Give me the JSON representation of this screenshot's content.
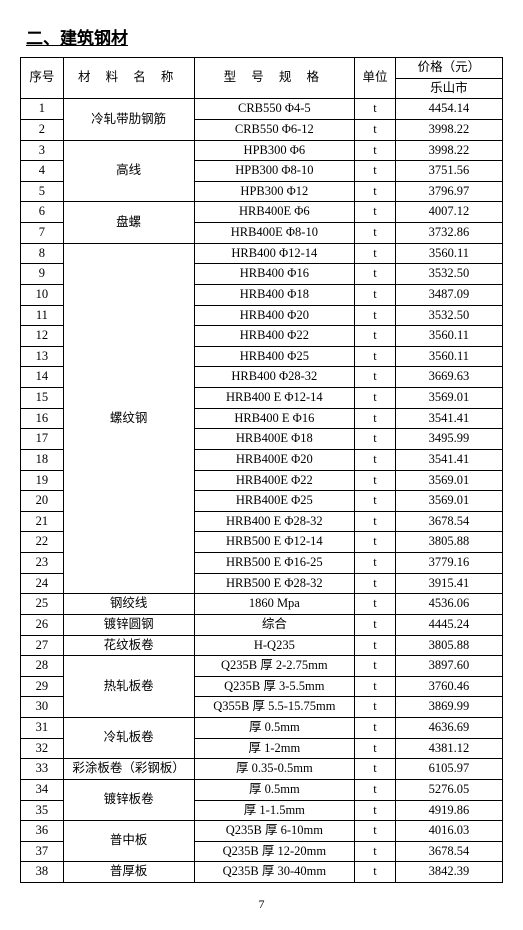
{
  "title": "二、建筑钢材",
  "page_number": "7",
  "columns": {
    "seq": "序号",
    "name": "材 料 名 称",
    "spec": "型 号 规 格",
    "unit": "单位",
    "price_group": "价格（元）",
    "price_city": "乐山市"
  },
  "groups": [
    {
      "name": "冷轧带肋钢筋",
      "rows": [
        {
          "seq": "1",
          "spec": "CRB550    Φ4-5",
          "unit": "t",
          "price": "4454.14"
        },
        {
          "seq": "2",
          "spec": "CRB550    Φ6-12",
          "unit": "t",
          "price": "3998.22"
        }
      ]
    },
    {
      "name": "高线",
      "rows": [
        {
          "seq": "3",
          "spec": "HPB300    Φ6",
          "unit": "t",
          "price": "3998.22"
        },
        {
          "seq": "4",
          "spec": "HPB300    Φ8-10",
          "unit": "t",
          "price": "3751.56"
        },
        {
          "seq": "5",
          "spec": "HPB300    Φ12",
          "unit": "t",
          "price": "3796.97"
        }
      ]
    },
    {
      "name": "盘螺",
      "rows": [
        {
          "seq": "6",
          "spec": "HRB400E    Φ6",
          "unit": "t",
          "price": "4007.12"
        },
        {
          "seq": "7",
          "spec": "HRB400E    Φ8-10",
          "unit": "t",
          "price": "3732.86"
        }
      ]
    },
    {
      "name": "螺纹钢",
      "rows": [
        {
          "seq": "8",
          "spec": "HRB400    Φ12-14",
          "unit": "t",
          "price": "3560.11"
        },
        {
          "seq": "9",
          "spec": "HRB400    Φ16",
          "unit": "t",
          "price": "3532.50"
        },
        {
          "seq": "10",
          "spec": "HRB400    Φ18",
          "unit": "t",
          "price": "3487.09"
        },
        {
          "seq": "11",
          "spec": "HRB400    Φ20",
          "unit": "t",
          "price": "3532.50"
        },
        {
          "seq": "12",
          "spec": "HRB400    Φ22",
          "unit": "t",
          "price": "3560.11"
        },
        {
          "seq": "13",
          "spec": "HRB400    Φ25",
          "unit": "t",
          "price": "3560.11"
        },
        {
          "seq": "14",
          "spec": "HRB400   Φ28-32",
          "unit": "t",
          "price": "3669.63"
        },
        {
          "seq": "15",
          "spec": "HRB400 E   Φ12-14",
          "unit": "t",
          "price": "3569.01"
        },
        {
          "seq": "16",
          "spec": "HRB400 E   Φ16",
          "unit": "t",
          "price": "3541.41"
        },
        {
          "seq": "17",
          "spec": "HRB400E    Φ18",
          "unit": "t",
          "price": "3495.99"
        },
        {
          "seq": "18",
          "spec": "HRB400E    Φ20",
          "unit": "t",
          "price": "3541.41"
        },
        {
          "seq": "19",
          "spec": "HRB400E    Φ22",
          "unit": "t",
          "price": "3569.01"
        },
        {
          "seq": "20",
          "spec": "HRB400E    Φ25",
          "unit": "t",
          "price": "3569.01"
        },
        {
          "seq": "21",
          "spec": "HRB400 E   Φ28-32",
          "unit": "t",
          "price": "3678.54"
        },
        {
          "seq": "22",
          "spec": "HRB500 E   Φ12-14",
          "unit": "t",
          "price": "3805.88"
        },
        {
          "seq": "23",
          "spec": "HRB500 E   Φ16-25",
          "unit": "t",
          "price": "3779.16"
        },
        {
          "seq": "24",
          "spec": "HRB500 E   Φ28-32",
          "unit": "t",
          "price": "3915.41"
        }
      ]
    },
    {
      "name": "钢绞线",
      "rows": [
        {
          "seq": "25",
          "spec": "1860 Mpa",
          "unit": "t",
          "price": "4536.06"
        }
      ]
    },
    {
      "name": "镀锌圆钢",
      "rows": [
        {
          "seq": "26",
          "spec": "综合",
          "unit": "t",
          "price": "4445.24"
        }
      ]
    },
    {
      "name": "花纹板卷",
      "rows": [
        {
          "seq": "27",
          "spec": "H-Q235",
          "unit": "t",
          "price": "3805.88"
        }
      ]
    },
    {
      "name": "热轧板卷",
      "rows": [
        {
          "seq": "28",
          "spec": "Q235B   厚 2-2.75mm",
          "unit": "t",
          "price": "3897.60"
        },
        {
          "seq": "29",
          "spec": "Q235B   厚 3-5.5mm",
          "unit": "t",
          "price": "3760.46"
        },
        {
          "seq": "30",
          "spec": "Q355B   厚 5.5-15.75mm",
          "unit": "t",
          "price": "3869.99"
        }
      ]
    },
    {
      "name": "冷轧板卷",
      "rows": [
        {
          "seq": "31",
          "spec": "厚 0.5mm",
          "unit": "t",
          "price": "4636.69"
        },
        {
          "seq": "32",
          "spec": "厚 1-2mm",
          "unit": "t",
          "price": "4381.12"
        }
      ]
    },
    {
      "name": "彩涂板卷（彩钢板）",
      "rows": [
        {
          "seq": "33",
          "spec": "厚 0.35-0.5mm",
          "unit": "t",
          "price": "6105.97"
        }
      ]
    },
    {
      "name": "镀锌板卷",
      "rows": [
        {
          "seq": "34",
          "spec": "厚 0.5mm",
          "unit": "t",
          "price": "5276.05"
        },
        {
          "seq": "35",
          "spec": "厚 1-1.5mm",
          "unit": "t",
          "price": "4919.86"
        }
      ]
    },
    {
      "name": "普中板",
      "rows": [
        {
          "seq": "36",
          "spec": "Q235B 厚 6-10mm",
          "unit": "t",
          "price": "4016.03"
        },
        {
          "seq": "37",
          "spec": "Q235B 厚 12-20mm",
          "unit": "t",
          "price": "3678.54"
        }
      ]
    },
    {
      "name": "普厚板",
      "rows": [
        {
          "seq": "38",
          "spec": "Q235B 厚 30-40mm",
          "unit": "t",
          "price": "3842.39"
        }
      ]
    }
  ]
}
